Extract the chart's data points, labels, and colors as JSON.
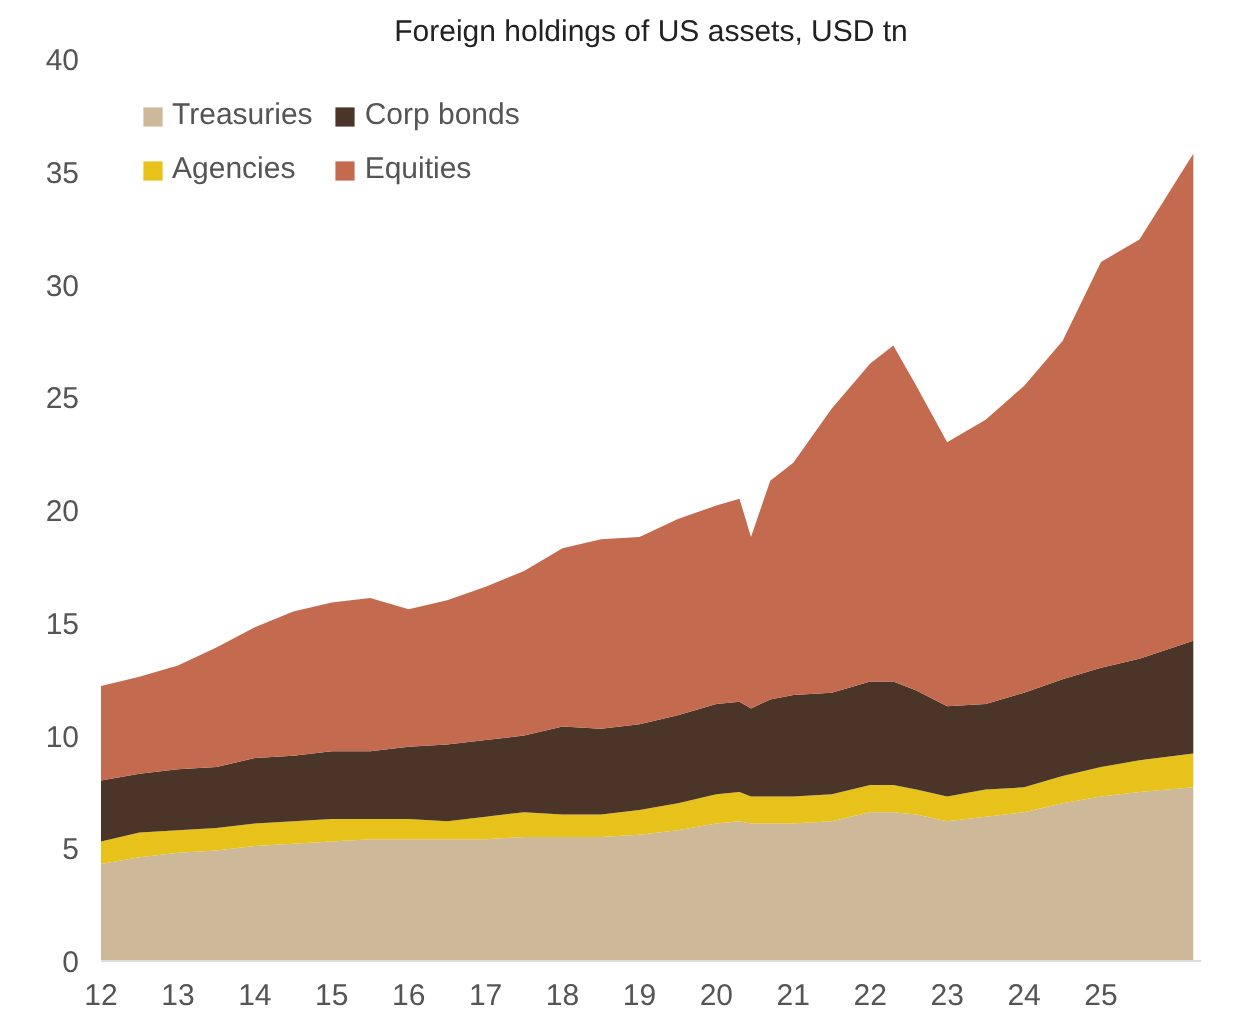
{
  "chart_data": {
    "type": "area",
    "title": "Foreign holdings of US assets, USD tn",
    "stacked": true,
    "x": [
      12,
      12.5,
      13,
      13.5,
      14,
      14.5,
      15,
      15.5,
      16,
      16.5,
      17,
      17.5,
      18,
      18.5,
      19,
      19.5,
      20,
      20.3,
      20.45,
      20.7,
      21,
      21.5,
      22,
      22.3,
      22.6,
      23,
      23.5,
      24,
      24.5,
      25,
      25.5,
      26.2
    ],
    "series": [
      {
        "name": "Treasuries",
        "color": "#cdb99a",
        "values": [
          4.3,
          4.6,
          4.8,
          4.9,
          5.1,
          5.2,
          5.3,
          5.4,
          5.4,
          5.4,
          5.4,
          5.5,
          5.5,
          5.5,
          5.6,
          5.8,
          6.1,
          6.2,
          6.1,
          6.1,
          6.1,
          6.2,
          6.6,
          6.6,
          6.5,
          6.2,
          6.4,
          6.6,
          7.0,
          7.3,
          7.5,
          7.7
        ]
      },
      {
        "name": "Agencies",
        "color": "#e6c21a",
        "values": [
          1.0,
          1.1,
          1.0,
          1.0,
          1.0,
          1.0,
          1.0,
          0.9,
          0.9,
          0.8,
          1.0,
          1.1,
          1.0,
          1.0,
          1.1,
          1.2,
          1.3,
          1.3,
          1.2,
          1.2,
          1.2,
          1.2,
          1.2,
          1.2,
          1.1,
          1.1,
          1.2,
          1.1,
          1.2,
          1.3,
          1.4,
          1.5
        ]
      },
      {
        "name": "Corp bonds",
        "color": "#4a3528",
        "values": [
          2.7,
          2.6,
          2.7,
          2.7,
          2.9,
          2.9,
          3.0,
          3.0,
          3.2,
          3.4,
          3.4,
          3.4,
          3.9,
          3.8,
          3.8,
          3.9,
          4.0,
          4.0,
          3.9,
          4.3,
          4.5,
          4.5,
          4.6,
          4.6,
          4.4,
          4.0,
          3.8,
          4.2,
          4.3,
          4.4,
          4.5,
          5.0
        ]
      },
      {
        "name": "Equities",
        "color": "#c46a4e",
        "values": [
          4.2,
          4.3,
          4.6,
          5.3,
          5.8,
          6.4,
          6.6,
          6.8,
          6.1,
          6.4,
          6.8,
          7.3,
          7.9,
          8.4,
          8.3,
          8.7,
          8.8,
          9.0,
          7.6,
          9.7,
          10.3,
          12.6,
          14.1,
          14.9,
          13.5,
          11.7,
          12.6,
          13.6,
          15.0,
          18.0,
          18.6,
          21.6
        ]
      }
    ],
    "xlim": [
      12,
      26.3
    ],
    "xticks": [
      12,
      13,
      14,
      15,
      16,
      17,
      18,
      19,
      20,
      21,
      22,
      23,
      24,
      25
    ],
    "ylim": [
      0,
      40
    ],
    "yticks": [
      0,
      5,
      10,
      15,
      20,
      25,
      30,
      35,
      40
    ],
    "grid": false,
    "legend": "top left"
  }
}
